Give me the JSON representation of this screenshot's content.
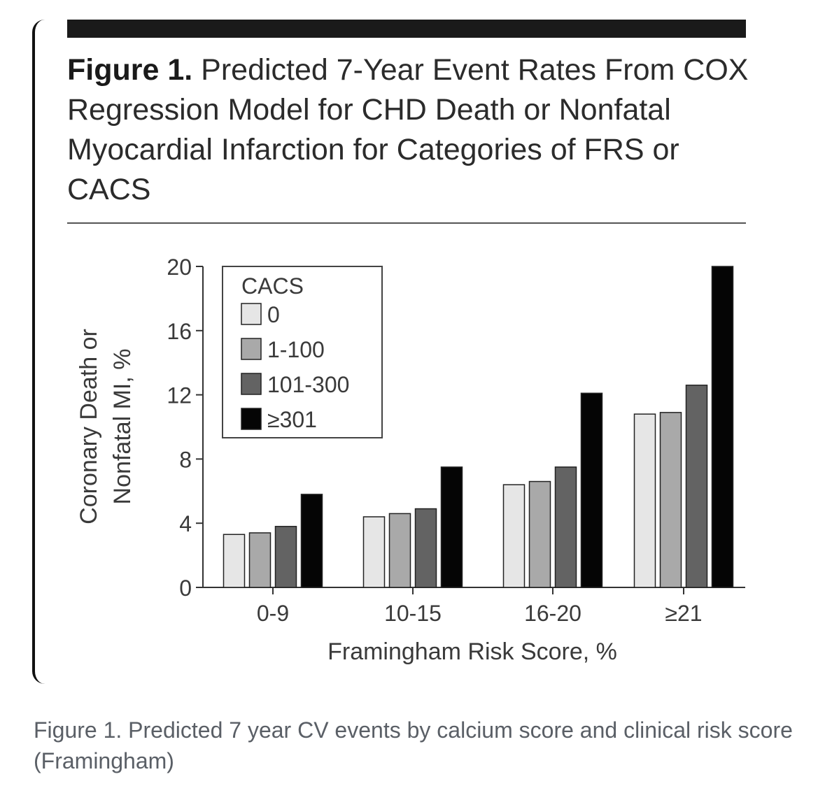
{
  "figure": {
    "title_bold": "Figure 1.",
    "title_rest": "Predicted 7-Year Event Rates From COX Regression Model for CHD Death or Nonfatal Myocardial Infarction for Categories of FRS or CACS"
  },
  "caption": "Figure 1. Predicted 7 year CV events by calcium score and clinical risk score (Framingham)",
  "chart_data": {
    "type": "bar",
    "title": "Predicted 7-Year Event Rates From COX Regression Model for CHD Death or Nonfatal Myocardial Infarction for Categories of FRS or CACS",
    "xlabel": "Framingham Risk Score, %",
    "ylabel_line1": "Coronary Death or",
    "ylabel_line2": "Nonfatal MI, %",
    "ylim": [
      0,
      20
    ],
    "yticks": [
      0,
      4,
      8,
      12,
      16,
      20
    ],
    "categories": [
      "0-9",
      "10-15",
      "16-20",
      "≥21"
    ],
    "legend_title": "CACS",
    "legend_position": "top-left",
    "series": [
      {
        "name": "0",
        "color": "#e6e6e6",
        "values": [
          3.3,
          4.4,
          6.4,
          10.8
        ]
      },
      {
        "name": "1-100",
        "color": "#a9a9a9",
        "values": [
          3.4,
          4.6,
          6.6,
          10.9
        ]
      },
      {
        "name": "101-300",
        "color": "#636363",
        "values": [
          3.8,
          4.9,
          7.5,
          12.6
        ]
      },
      {
        "name": "≥301",
        "color": "#050505",
        "values": [
          5.8,
          7.5,
          12.1,
          20.0
        ]
      }
    ]
  }
}
